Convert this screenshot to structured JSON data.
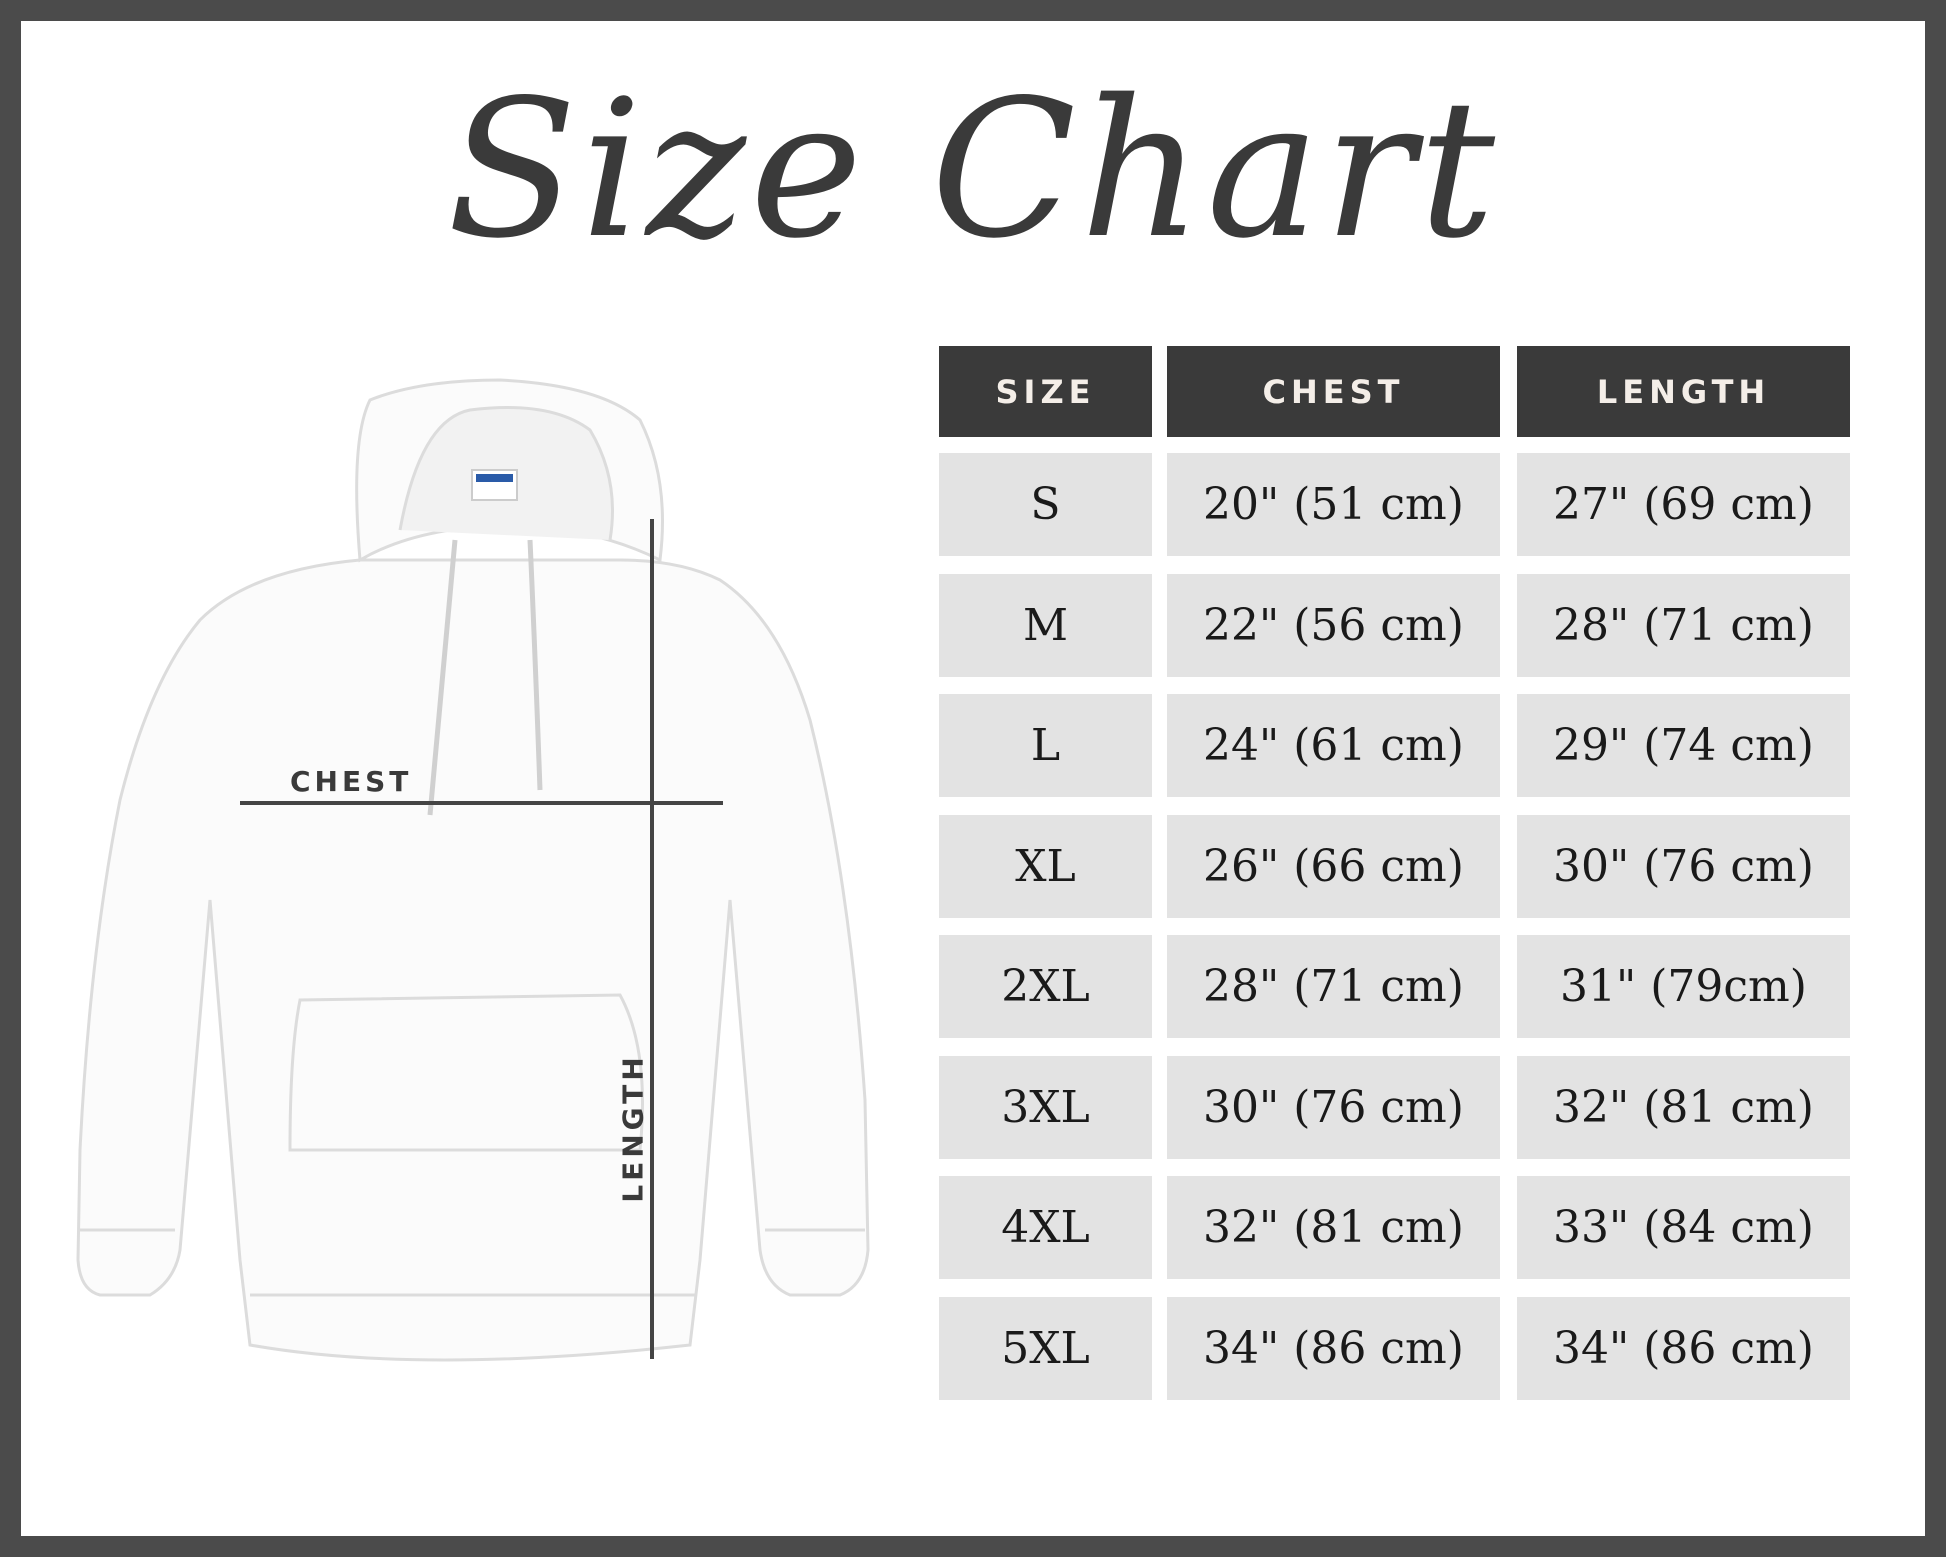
{
  "title": "Size Chart",
  "colors": {
    "frame": "#4b4b4b",
    "header_bg": "#3a3a3a",
    "cell_bg": "#e3e3e3",
    "text": "#1a1a1a"
  },
  "diagram": {
    "chest_label": "CHEST",
    "length_label": "LENGTH",
    "image": "white-hoodie-icon"
  },
  "table": {
    "headers": [
      "SIZE",
      "CHEST",
      "LENGTH"
    ],
    "rows": [
      [
        "S",
        "20\" (51 cm)",
        "27\" (69 cm)"
      ],
      [
        "M",
        "22\" (56 cm)",
        "28\" (71 cm)"
      ],
      [
        "L",
        "24\" (61 cm)",
        "29\" (74 cm)"
      ],
      [
        "XL",
        "26\" (66 cm)",
        "30\" (76 cm)"
      ],
      [
        "2XL",
        "28\" (71 cm)",
        "31\" (79cm)"
      ],
      [
        "3XL",
        "30\" (76 cm)",
        "32\" (81 cm)"
      ],
      [
        "4XL",
        "32\" (81 cm)",
        "33\" (84 cm)"
      ],
      [
        "5XL",
        "34\" (86 cm)",
        "34\" (86 cm)"
      ]
    ]
  }
}
